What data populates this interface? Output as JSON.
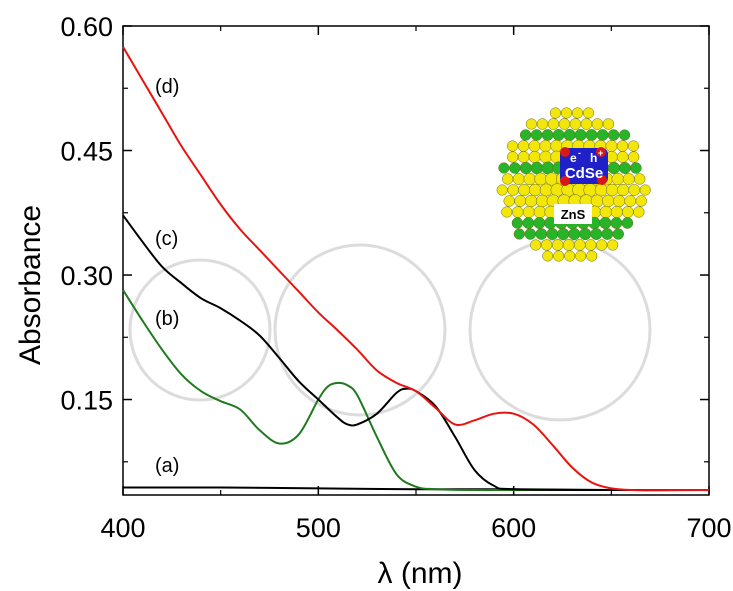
{
  "chart_data": {
    "type": "line",
    "xlabel": "λ (nm)",
    "ylabel": "Absorbance",
    "xlim": [
      400,
      700
    ],
    "ylim": [
      0.035,
      0.6
    ],
    "x_ticks": [
      400,
      500,
      600,
      700
    ],
    "y_ticks": [
      0.15,
      0.3,
      0.45,
      0.6
    ],
    "x_tick_labels": [
      "400",
      "500",
      "600",
      "700"
    ],
    "y_tick_labels": [
      "0.15",
      "0.30",
      "0.45",
      "0.60"
    ],
    "grid": false,
    "series": [
      {
        "name": "(a)",
        "color": "#000000",
        "x": [
          400,
          450,
          500,
          550,
          600,
          650,
          700
        ],
        "y": [
          0.044,
          0.044,
          0.043,
          0.042,
          0.042,
          0.041,
          0.041
        ]
      },
      {
        "name": "(b)",
        "color": "#1e7a1e",
        "x": [
          400,
          410,
          420,
          430,
          440,
          450,
          460,
          470,
          480,
          490,
          500,
          505,
          510,
          515,
          520,
          530,
          540,
          550,
          560,
          580,
          600,
          650,
          700
        ],
        "y": [
          0.282,
          0.245,
          0.21,
          0.18,
          0.16,
          0.148,
          0.138,
          0.113,
          0.097,
          0.108,
          0.15,
          0.166,
          0.17,
          0.167,
          0.155,
          0.105,
          0.06,
          0.045,
          0.042,
          0.041,
          0.041,
          0.041,
          0.041
        ]
      },
      {
        "name": "(c)",
        "color": "#000000",
        "x": [
          400,
          410,
          420,
          430,
          440,
          450,
          460,
          470,
          480,
          490,
          500,
          510,
          515,
          520,
          530,
          540,
          545,
          550,
          560,
          570,
          580,
          590,
          600,
          650,
          700
        ],
        "y": [
          0.372,
          0.34,
          0.31,
          0.29,
          0.272,
          0.26,
          0.245,
          0.227,
          0.2,
          0.172,
          0.15,
          0.128,
          0.12,
          0.12,
          0.133,
          0.158,
          0.163,
          0.16,
          0.142,
          0.105,
          0.065,
          0.046,
          0.042,
          0.041,
          0.041
        ]
      },
      {
        "name": "(d)",
        "color": "#e8130f",
        "x": [
          400,
          410,
          420,
          430,
          440,
          450,
          460,
          470,
          480,
          490,
          500,
          510,
          520,
          530,
          540,
          550,
          560,
          570,
          580,
          590,
          600,
          610,
          620,
          630,
          640,
          650,
          660,
          680,
          700
        ],
        "y": [
          0.575,
          0.535,
          0.495,
          0.455,
          0.42,
          0.385,
          0.355,
          0.33,
          0.305,
          0.28,
          0.255,
          0.233,
          0.21,
          0.185,
          0.17,
          0.16,
          0.14,
          0.12,
          0.125,
          0.133,
          0.133,
          0.12,
          0.095,
          0.068,
          0.05,
          0.043,
          0.041,
          0.041,
          0.041
        ]
      }
    ],
    "annotations": [
      "(a)",
      "(b)",
      "(c)",
      "(d)"
    ]
  },
  "inset": {
    "core_label": "CdSe",
    "shell_label": "ZnS",
    "electron_label": "e",
    "electron_sup": "-",
    "hole_label": "h",
    "hole_sup": "+"
  },
  "colors": {
    "shell_yellow": "#f2e60a",
    "shell_green": "#28b428",
    "core_blue": "#2020c8",
    "core_red": "#d81818"
  }
}
